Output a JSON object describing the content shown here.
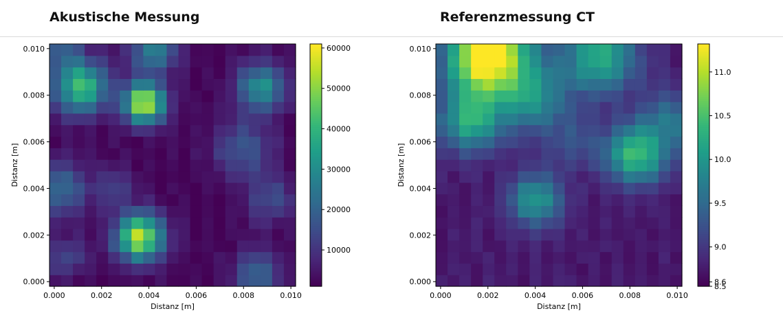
{
  "chart_data": [
    {
      "type": "heatmap",
      "title": "Akustische Messung",
      "xlabel": "Distanz [m]",
      "ylabel": "Distanz [m]",
      "xlim": [
        -0.0002,
        0.0102
      ],
      "ylim": [
        -0.0002,
        0.0102
      ],
      "x_ticks": [
        "0.000",
        "0.002",
        "0.004",
        "0.006",
        "0.008",
        "0.010"
      ],
      "y_ticks": [
        "0.000",
        "0.002",
        "0.004",
        "0.006",
        "0.008",
        "0.010"
      ],
      "colorbar": {
        "min": 1000,
        "max": 61000,
        "ticks": [
          "10000",
          "20000",
          "30000",
          "40000",
          "50000",
          "60000"
        ],
        "tick_values": [
          10000,
          20000,
          30000,
          40000,
          50000,
          60000
        ]
      },
      "colormap": "viridis",
      "blobs": [
        {
          "x": 0.0038,
          "y": 0.0077,
          "amp": 55000,
          "s": 0.0006
        },
        {
          "x": 0.0036,
          "y": 0.0019,
          "amp": 53000,
          "s": 0.0007
        },
        {
          "x": 0.0011,
          "y": 0.0084,
          "amp": 40000,
          "s": 0.0008
        },
        {
          "x": 0.0088,
          "y": 0.0084,
          "amp": 30000,
          "s": 0.0007
        },
        {
          "x": 0.0042,
          "y": 0.01,
          "amp": 25000,
          "s": 0.0007
        },
        {
          "x": 0.008,
          "y": 0.0057,
          "amp": 15000,
          "s": 0.0009
        },
        {
          "x": 0.0002,
          "y": 0.004,
          "amp": 20000,
          "s": 0.0008
        },
        {
          "x": 0.0086,
          "y": 0.0003,
          "amp": 18000,
          "s": 0.0007
        },
        {
          "x": 0.0092,
          "y": 0.0035,
          "amp": 13000,
          "s": 0.0007
        },
        {
          "x": 0.0005,
          "y": 0.001,
          "amp": 12000,
          "s": 0.0006
        },
        {
          "x": 0.0025,
          "y": 0.004,
          "amp": 10000,
          "s": 0.0006
        },
        {
          "x": 0.0003,
          "y": 0.01,
          "amp": 14000,
          "s": 0.0006
        }
      ],
      "base": 2000
    },
    {
      "type": "heatmap",
      "title": "Referenzmessung CT",
      "xlabel": "Distanz [m]",
      "ylabel": "Distanz [m]",
      "xlim": [
        -0.0002,
        0.0102
      ],
      "ylim": [
        -0.0002,
        0.0102
      ],
      "x_ticks": [
        "0.000",
        "0.002",
        "0.004",
        "0.006",
        "0.008",
        "0.010"
      ],
      "y_ticks": [
        "0.000",
        "0.002",
        "0.004",
        "0.006",
        "0.008",
        "0.010"
      ],
      "colorbar": {
        "min": 8.55,
        "max": 11.32,
        "ticks": [
          "8.5",
          "8.6",
          "9.0",
          "9.5",
          "10.0",
          "10.5",
          "11.0"
        ],
        "tick_values": [
          8.5,
          8.6,
          9.0,
          9.5,
          10.0,
          10.5,
          11.0
        ]
      },
      "colormap": "viridis",
      "blobs": [
        {
          "x": 0.0021,
          "y": 0.0102,
          "amp": 2.4,
          "s": 0.0012
        },
        {
          "x": 0.0068,
          "y": 0.0097,
          "amp": 1.5,
          "s": 0.0011
        },
        {
          "x": 0.0012,
          "y": 0.0069,
          "amp": 1.45,
          "s": 0.0009
        },
        {
          "x": 0.0083,
          "y": 0.0055,
          "amp": 1.7,
          "s": 0.0009
        },
        {
          "x": 0.004,
          "y": 0.0035,
          "amp": 1.3,
          "s": 0.0008
        },
        {
          "x": 0.0038,
          "y": 0.008,
          "amp": 1.2,
          "s": 0.0011
        },
        {
          "x": 0.0015,
          "y": 0.009,
          "amp": 1.0,
          "s": 0.001
        },
        {
          "x": 0.0099,
          "y": 0.007,
          "amp": 0.8,
          "s": 0.0009
        },
        {
          "x": 0.0057,
          "y": 0.006,
          "amp": 0.45,
          "s": 0.0008
        }
      ],
      "base": 8.75
    }
  ]
}
